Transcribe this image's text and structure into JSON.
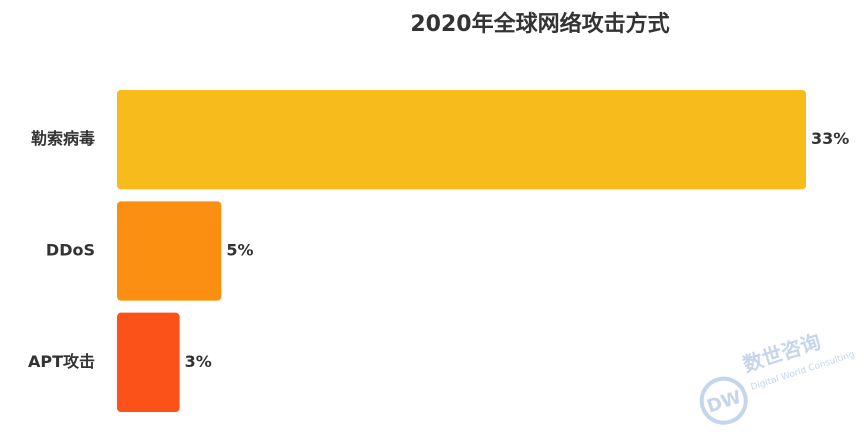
{
  "chart_data": {
    "type": "bar",
    "orientation": "horizontal",
    "title": "2020年全球网络攻击方式",
    "categories": [
      "勒索病毒",
      "DDoS",
      "APT攻击"
    ],
    "values": [
      33,
      5,
      3
    ],
    "value_labels": [
      "33%",
      "5%",
      "3%"
    ],
    "colors": [
      "#f7bb1b",
      "#fa8f12",
      "#fb5219"
    ]
  },
  "watermark": {
    "title": "数世咨询",
    "subtitle": "Digital World Consulting"
  }
}
